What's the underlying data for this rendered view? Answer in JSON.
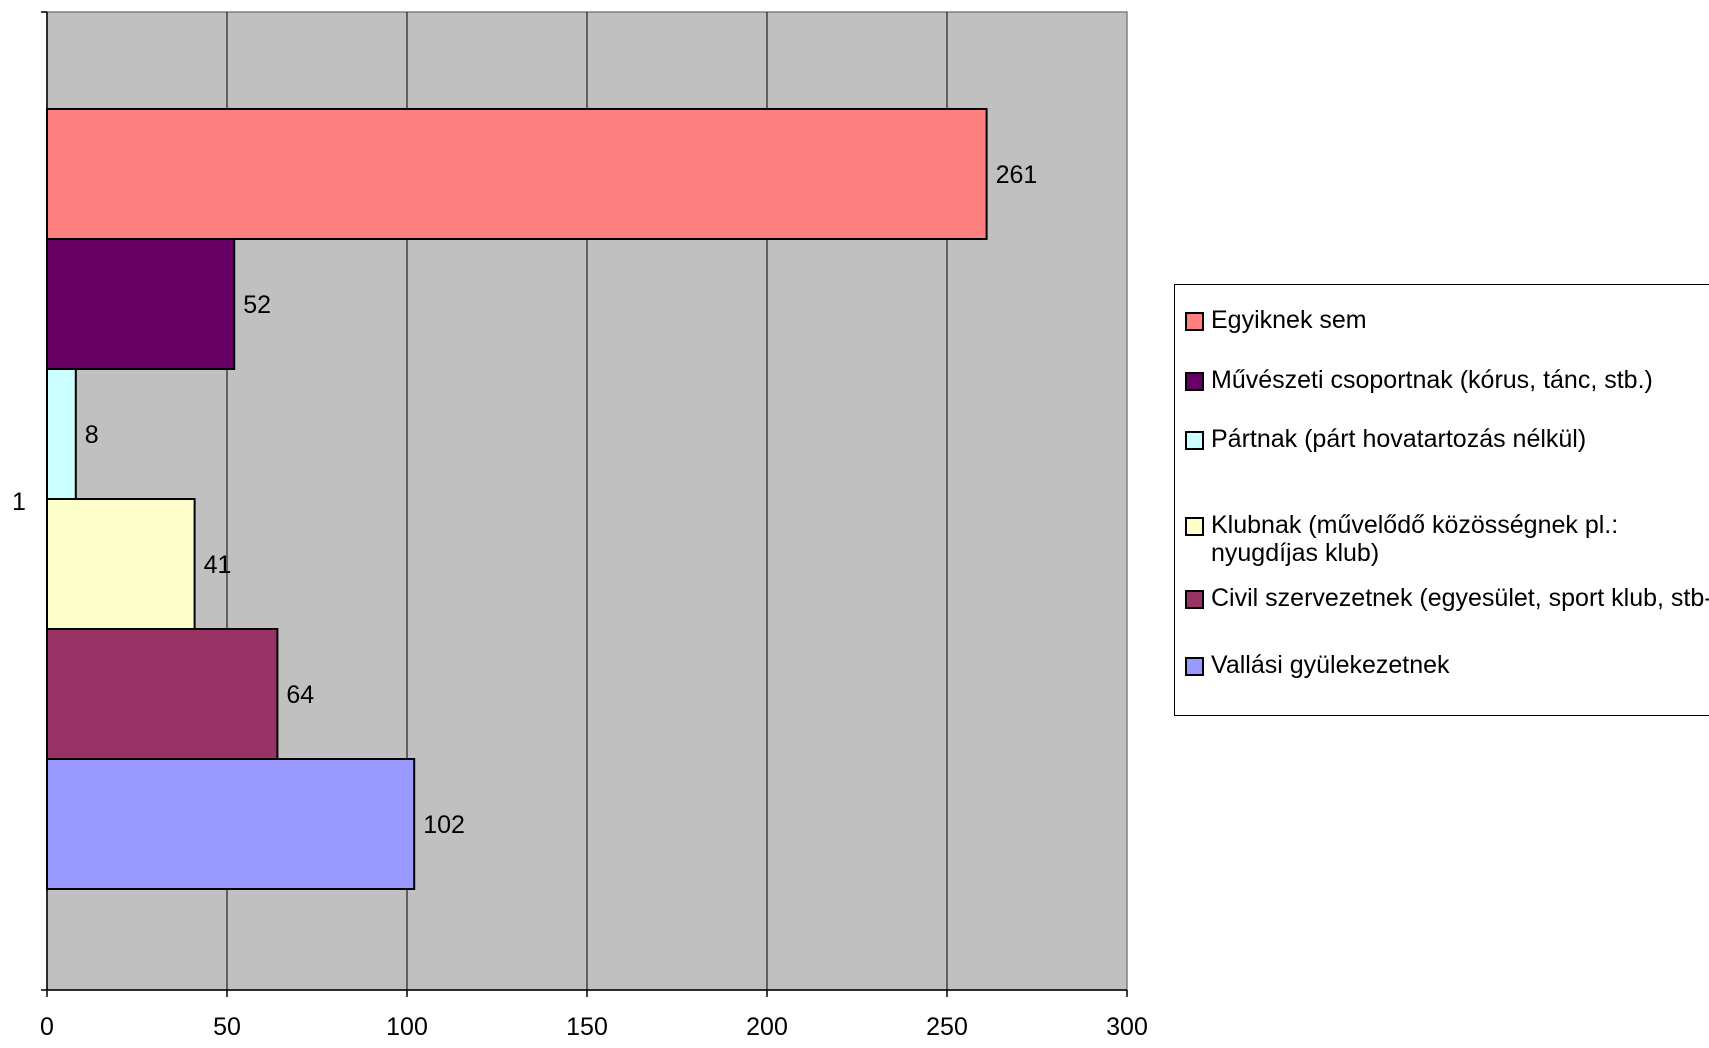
{
  "chart_data": {
    "type": "bar",
    "orientation": "horizontal",
    "categories": [
      "1"
    ],
    "series": [
      {
        "name": "Egyiknek sem",
        "values": [
          261
        ],
        "color": "#FF8080"
      },
      {
        "name": "Művészeti csoportnak (kórus, tánc, stb.)",
        "values": [
          52
        ],
        "color": "#660066"
      },
      {
        "name": "Pártnak (párt hovatartozás nélkül)",
        "values": [
          8
        ],
        "color": "#CCFFFF"
      },
      {
        "name": "Klubnak (művelődő közösségnek pl.: nyugdíjas klub)",
        "values": [
          41
        ],
        "color": "#FFFFCC"
      },
      {
        "name": "Civil szervezetnek (egyesület, sport klub, stb-)",
        "values": [
          64
        ],
        "color": "#993366"
      },
      {
        "name": "Vallási gyülekezetnek",
        "values": [
          102
        ],
        "color": "#9999FF"
      }
    ],
    "x_ticks": [
      "0",
      "50",
      "100",
      "150",
      "200",
      "250",
      "300"
    ],
    "xlim": [
      0,
      300
    ],
    "grid": true,
    "legend_position": "right",
    "plot_background": "#C0C0C0",
    "title": "",
    "xlabel": "",
    "ylabel": ""
  },
  "legend": {
    "items": [
      {
        "label": "Egyiknek sem"
      },
      {
        "label": "Művészeti csoportnak (kórus, tánc, stb.)"
      },
      {
        "label": "Pártnak (párt hovatartozás nélkül)"
      },
      {
        "label": "Klubnak (művelődő közösségnek pl.: nyugdíjas klub)"
      },
      {
        "label": "Civil szervezetnek (egyesület, sport klub, stb-)"
      },
      {
        "label": "Vallási gyülekezetnek"
      }
    ]
  }
}
